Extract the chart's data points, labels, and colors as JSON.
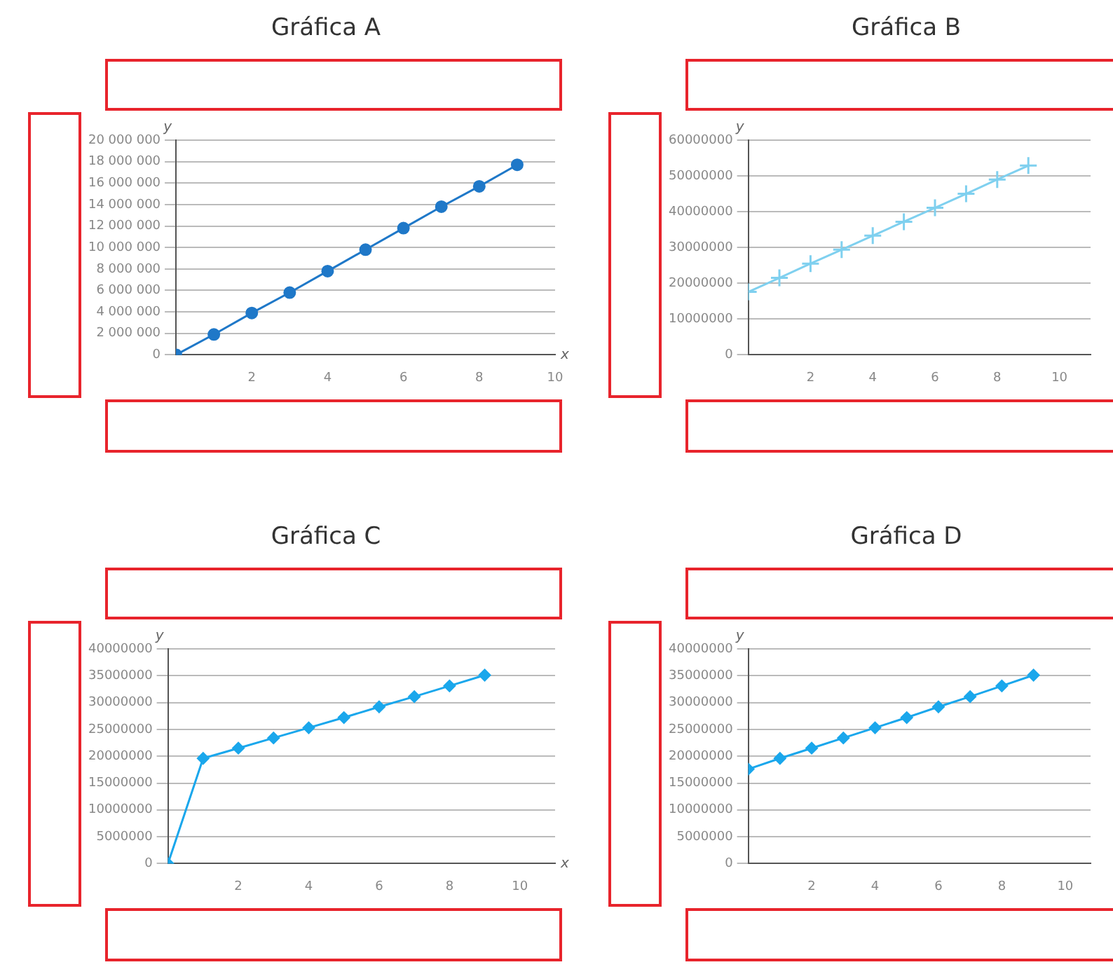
{
  "chart_data": [
    {
      "type": "line",
      "title": "Gráfica A",
      "xlabel": "x",
      "ylabel": "y",
      "x": [
        0,
        1,
        2,
        3,
        4,
        5,
        6,
        7,
        8,
        9
      ],
      "series": [
        {
          "color": "#1f78c8",
          "values": [
            0,
            1900000,
            3900000,
            5800000,
            7800000,
            9800000,
            11800000,
            13800000,
            15700000,
            17700000
          ]
        }
      ],
      "xlim": [
        0,
        10
      ],
      "xticks": [
        2,
        4,
        6,
        8,
        10
      ],
      "ylim": [
        0,
        20000000
      ],
      "yticks": [
        {
          "value": 0,
          "label": "0"
        },
        {
          "value": 2000000,
          "label": "2 000 000"
        },
        {
          "value": 4000000,
          "label": "4 000 000"
        },
        {
          "value": 6000000,
          "label": "6 000 000"
        },
        {
          "value": 8000000,
          "label": "8 000 000"
        },
        {
          "value": 10000000,
          "label": "10 000 000"
        },
        {
          "value": 12000000,
          "label": "12 000 000"
        },
        {
          "value": 14000000,
          "label": "14 000 000"
        },
        {
          "value": 16000000,
          "label": "16 000 000"
        },
        {
          "value": 18000000,
          "label": "18 000 000"
        },
        {
          "value": 20000000,
          "label": "20 000 000"
        }
      ],
      "grid": "y",
      "legend": false,
      "marker": "circle",
      "line_style": "solid"
    },
    {
      "type": "line",
      "title": "Gráfica B",
      "ylabel": "y",
      "x": [
        0,
        1,
        2,
        3,
        4,
        5,
        6,
        7,
        8,
        9
      ],
      "series": [
        {
          "color": "#7fd0ef",
          "values": [
            17600000,
            21500000,
            25500000,
            29400000,
            33300000,
            37200000,
            41100000,
            45000000,
            49000000,
            52900000
          ]
        }
      ],
      "xlim": [
        0,
        11
      ],
      "xticks": [
        2,
        4,
        6,
        8,
        10
      ],
      "ylim": [
        0,
        60000000
      ],
      "yticks": [
        0,
        10000000,
        20000000,
        30000000,
        40000000,
        50000000,
        60000000
      ],
      "grid": "y",
      "legend": false,
      "marker": "cross",
      "line_style": "solid"
    },
    {
      "type": "line",
      "title": "Gráfica C",
      "xlabel": "x",
      "ylabel": "y",
      "x": [
        0,
        1,
        2,
        3,
        4,
        5,
        6,
        7,
        8,
        9
      ],
      "series": [
        {
          "color": "#1aa7ec",
          "values": [
            0,
            19600000,
            21500000,
            23400000,
            25300000,
            27200000,
            29200000,
            31100000,
            33100000,
            35100000
          ]
        }
      ],
      "xlim": [
        0,
        11
      ],
      "xticks": [
        2,
        4,
        6,
        8,
        10
      ],
      "ylim": [
        0,
        40000000
      ],
      "yticks": [
        0,
        5000000,
        10000000,
        15000000,
        20000000,
        25000000,
        30000000,
        35000000,
        40000000
      ],
      "grid": "y",
      "legend": false,
      "marker": "diamond",
      "line_style": "solid"
    },
    {
      "type": "line",
      "title": "Gráfica D",
      "ylabel": "y",
      "x": [
        0,
        1,
        2,
        3,
        4,
        5,
        6,
        7,
        8,
        9
      ],
      "series": [
        {
          "color": "#1aa7ec",
          "values": [
            17600000,
            19600000,
            21500000,
            23400000,
            25300000,
            27200000,
            29200000,
            31100000,
            33100000,
            35100000
          ]
        }
      ],
      "xlim": [
        0,
        10.8
      ],
      "xticks": [
        2,
        4,
        6,
        8,
        10
      ],
      "ylim": [
        0,
        40000000
      ],
      "yticks": [
        0,
        5000000,
        10000000,
        15000000,
        20000000,
        25000000,
        30000000,
        35000000,
        40000000
      ],
      "grid": "y",
      "legend": false,
      "marker": "diamond",
      "line_style": "solid"
    }
  ]
}
